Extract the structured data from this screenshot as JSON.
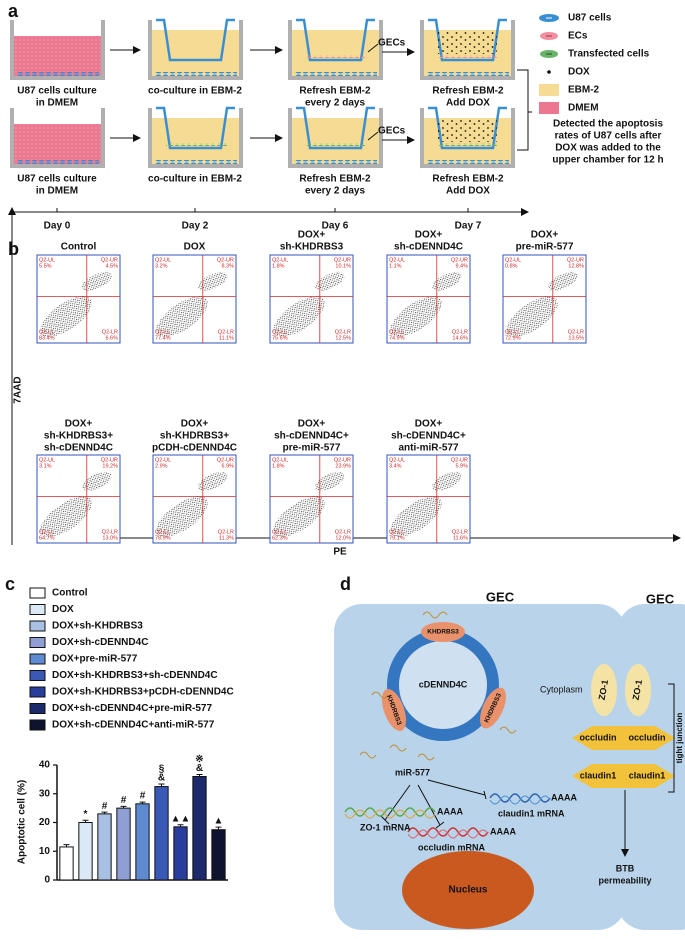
{
  "panel_a": {
    "label": "a",
    "rows": [
      {
        "steps": [
          [
            "U87 cells culture",
            "in DMEM"
          ],
          [
            "co-culture in EBM-2"
          ],
          [
            "Refresh EBM-2",
            "every 2 days"
          ],
          [
            "Refresh EBM-2",
            "Add DOX"
          ]
        ],
        "gecs": "GECs"
      },
      {
        "steps": [
          [
            "U87 cells culture",
            "in DMEM"
          ],
          [
            "co-culture in EBM-2"
          ],
          [
            "Refresh EBM-2",
            "every 2 days"
          ],
          [
            "Refresh EBM-2",
            "Add DOX"
          ]
        ],
        "gecs": "GECs"
      }
    ],
    "days": [
      "Day 0",
      "Day 2",
      "Day 6",
      "Day 7"
    ],
    "legend": [
      "U87 cells",
      "ECs",
      "Transfected cells",
      "DOX",
      "EBM-2",
      "DMEM"
    ],
    "note": [
      "Detected the apoptosis",
      "rates of U87 cells after",
      "DOX was added to the",
      "upper chamber for 12 h"
    ]
  },
  "panel_b": {
    "label": "b",
    "y_label": "7AAD",
    "x_label": "PE",
    "quadrant_names": {
      "ul": "Q2-UL",
      "ur": "Q2-UR",
      "ll": "Q2-LL",
      "lr": "Q2-LR"
    },
    "plots": [
      {
        "title": [
          "Control"
        ],
        "ul": "5.5%",
        "ur": "4.5%",
        "ll": "83.4%",
        "lr": "6.6%"
      },
      {
        "title": [
          "DOX"
        ],
        "ul": "3.2%",
        "ur": "8.3%",
        "ll": "77.4%",
        "lr": "11.1%"
      },
      {
        "title": [
          "DOX+",
          "sh-KHDRBS3"
        ],
        "ul": "1.8%",
        "ur": "10.1%",
        "ll": "75.6%",
        "lr": "12.5%"
      },
      {
        "title": [
          "DOX+",
          "sh-cDENND4C"
        ],
        "ul": "1.1%",
        "ur": "9.4%",
        "ll": "74.9%",
        "lr": "14.6%"
      },
      {
        "title": [
          "DOX+",
          "pre-miR-577"
        ],
        "ul": "0.8%",
        "ur": "12.8%",
        "ll": "72.9%",
        "lr": "13.5%"
      },
      {
        "title": [
          "DOX+",
          "sh-KHDRBS3+",
          "sh-cDENND4C"
        ],
        "ul": "3.1%",
        "ur": "19.2%",
        "ll": "64.7%",
        "lr": "13.0%"
      },
      {
        "title": [
          "DOX+",
          "sh-KHDRBS3+",
          "pCDH-cDENND4C"
        ],
        "ul": "2.9%",
        "ur": "6.9%",
        "ll": "78.9%",
        "lr": "11.3%"
      },
      {
        "title": [
          "DOX+",
          "sh-cDENND4C+",
          "pre-miR-577"
        ],
        "ul": "1.8%",
        "ur": "23.9%",
        "ll": "62.3%",
        "lr": "12.0%"
      },
      {
        "title": [
          "DOX+",
          "sh-cDENND4C+",
          "anti-miR-577"
        ],
        "ul": "3.4%",
        "ur": "5.9%",
        "ll": "79.1%",
        "lr": "11.6%"
      }
    ]
  },
  "chart_data": {
    "type": "bar",
    "label": "c",
    "y_label": "Apoptotic cell (%)",
    "categories": [
      "Control",
      "DOX",
      "DOX+sh-KHDRBS3",
      "DOX+sh-cDENND4C",
      "DOX+pre-miR-577",
      "DOX+sh-KHDRBS3+sh-cDENND4C",
      "DOX+sh-KHDRBS3+pCDH-cDENND4C",
      "DOX+sh-cDENND4C+pre-miR-577",
      "DOX+sh-cDENND4C+anti-miR-577"
    ],
    "values": [
      11.5,
      20,
      23,
      25,
      26.5,
      32.5,
      18.5,
      36,
      17.5
    ],
    "errors": [
      0.8,
      0.8,
      0.6,
      0.6,
      0.6,
      0.9,
      0.7,
      0.7,
      0.9
    ],
    "colors": [
      "#ffffff",
      "#dbe8f6",
      "#a8c1e3",
      "#8f9fd3",
      "#5d8ad0",
      "#3a58b6",
      "#283d9c",
      "#1c2a6c",
      "#0e1430"
    ],
    "annotations": [
      null,
      [
        "*"
      ],
      [
        "#"
      ],
      [
        "#"
      ],
      [
        "#"
      ],
      [
        "&",
        "§"
      ],
      [
        "▲▲"
      ],
      [
        "&",
        "※"
      ],
      [
        "▲"
      ]
    ],
    "ylim": [
      0,
      40
    ],
    "yticks": [
      0,
      10,
      20,
      30,
      40
    ],
    "legend": "top-left"
  },
  "panel_d": {
    "label": "d",
    "cells": [
      "GEC",
      "GEC"
    ],
    "circle": "cDENND4C",
    "khdrbs3": [
      "KHDRBS3",
      "KHDRBS3",
      "KHDRBS3"
    ],
    "cytoplasm": "Cytoplasm",
    "mirna": "miR-577",
    "mrnas": [
      "ZO-1 mRNA",
      "occludin mRNA",
      "claudin1 mRNA"
    ],
    "polya": [
      "AAAA",
      "AAAA",
      "AAAA"
    ],
    "zo1": [
      "ZO-1",
      "ZO-1"
    ],
    "occludin": [
      "occludin",
      "occludin"
    ],
    "claudin1": [
      "claudin1",
      "claudin1"
    ],
    "tight_junction": "tight junction",
    "nucleus": "Nucleus",
    "outcome": [
      "BTB",
      "permeability"
    ]
  }
}
